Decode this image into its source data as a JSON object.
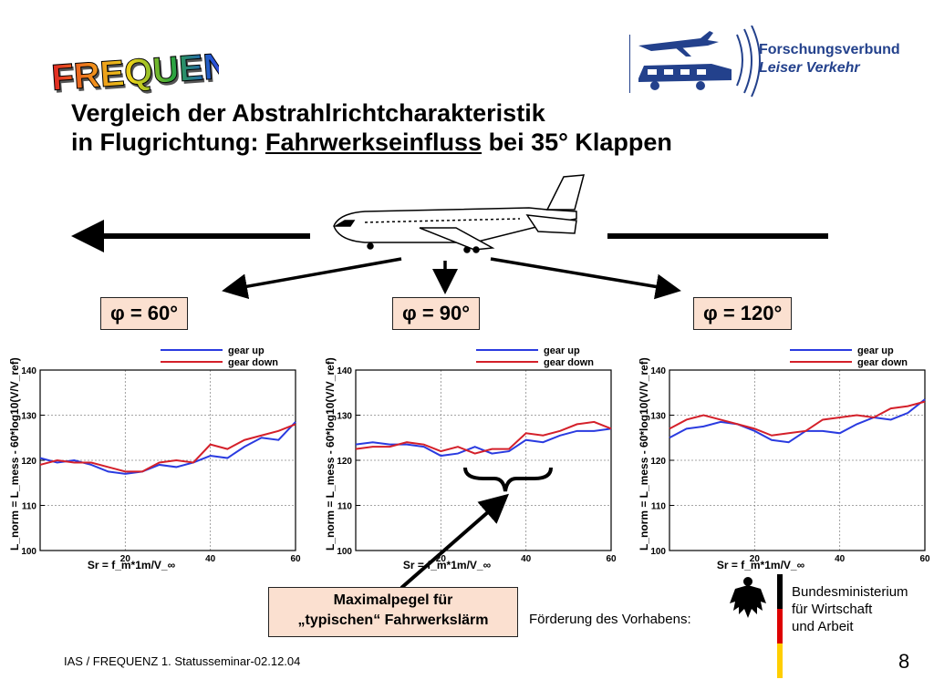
{
  "logo_text": "FREQUENZ",
  "partner": {
    "line1": "Forschungsverbund",
    "line2": "Leiser Verkehr"
  },
  "title": {
    "line1": "Vergleich der Abstrahlrichtcharakteristik",
    "line2_prefix": "in Flugrichtung: ",
    "line2_underlined": "Fahrwerkseinfluss",
    "line2_suffix": " bei 35° Klappen"
  },
  "angles": [
    "φ = 60°",
    "φ = 90°",
    "φ = 120°"
  ],
  "chart_labels": {
    "ylabel": "L_norm = L_mess - 60*log10(V/V_ref)",
    "xlabel": "Sr = f_m*1m/V_∞"
  },
  "chart_data": [
    {
      "type": "line",
      "title": "",
      "ylim": [
        100,
        140
      ],
      "xlim": [
        0,
        60
      ],
      "yticks": [
        100,
        110,
        120,
        130,
        140
      ],
      "xticks": [
        20,
        40,
        60
      ],
      "legend_position": "top-right",
      "series": [
        {
          "name": "gear up",
          "color": "#2a3be0",
          "x": [
            0,
            4,
            8,
            12,
            16,
            20,
            24,
            28,
            32,
            36,
            40,
            44,
            48,
            52,
            56,
            60
          ],
          "y": [
            120.5,
            119.5,
            120,
            119,
            117.5,
            117,
            117.5,
            119,
            118.5,
            119.5,
            121,
            120.5,
            123,
            125,
            124.5,
            128.5
          ]
        },
        {
          "name": "gear down",
          "color": "#d4202a",
          "x": [
            0,
            4,
            8,
            12,
            16,
            20,
            24,
            28,
            32,
            36,
            40,
            44,
            48,
            52,
            56,
            60
          ],
          "y": [
            119,
            120,
            119.5,
            119.5,
            118.5,
            117.5,
            117.5,
            119.5,
            120,
            119.5,
            123.5,
            122.5,
            124.5,
            125.5,
            126.5,
            128
          ]
        }
      ]
    },
    {
      "type": "line",
      "title": "",
      "ylim": [
        100,
        140
      ],
      "xlim": [
        0,
        60
      ],
      "yticks": [
        100,
        110,
        120,
        130,
        140
      ],
      "xticks": [
        20,
        40,
        60
      ],
      "legend_position": "top-right",
      "series": [
        {
          "name": "gear up",
          "color": "#2a3be0",
          "x": [
            0,
            4,
            8,
            12,
            16,
            20,
            24,
            28,
            32,
            36,
            40,
            44,
            48,
            52,
            56,
            60
          ],
          "y": [
            123.5,
            124,
            123.5,
            123.5,
            123,
            121,
            121.5,
            123,
            121.5,
            122,
            124.5,
            124,
            125.5,
            126.5,
            126.5,
            127
          ]
        },
        {
          "name": "gear down",
          "color": "#d4202a",
          "x": [
            0,
            4,
            8,
            12,
            16,
            20,
            24,
            28,
            32,
            36,
            40,
            44,
            48,
            52,
            56,
            60
          ],
          "y": [
            122.5,
            123,
            123,
            124,
            123.5,
            122,
            123,
            121.5,
            122.5,
            122.5,
            126,
            125.5,
            126.5,
            128,
            128.5,
            127
          ]
        }
      ]
    },
    {
      "type": "line",
      "title": "",
      "ylim": [
        100,
        140
      ],
      "xlim": [
        0,
        60
      ],
      "yticks": [
        100,
        110,
        120,
        130,
        140
      ],
      "xticks": [
        20,
        40,
        60
      ],
      "legend_position": "top-right",
      "series": [
        {
          "name": "gear up",
          "color": "#2a3be0",
          "x": [
            0,
            4,
            8,
            12,
            16,
            20,
            24,
            28,
            32,
            36,
            40,
            44,
            48,
            52,
            56,
            60
          ],
          "y": [
            125,
            127,
            127.5,
            128.5,
            128,
            126.5,
            124.5,
            124,
            126.5,
            126.5,
            126,
            128,
            129.5,
            129,
            130.5,
            133.5
          ]
        },
        {
          "name": "gear down",
          "color": "#d4202a",
          "x": [
            0,
            4,
            8,
            12,
            16,
            20,
            24,
            28,
            32,
            36,
            40,
            44,
            48,
            52,
            56,
            60
          ],
          "y": [
            127,
            129,
            130,
            129,
            128,
            127,
            125.5,
            126,
            126.5,
            129,
            129.5,
            130,
            129.5,
            131.5,
            132,
            133
          ]
        }
      ]
    }
  ],
  "callout": {
    "line1": "Maximalpegel für",
    "line2": "„typischen“ Fahrwerkslärm"
  },
  "foerderung": "Förderung des Vorhabens:",
  "ministry": {
    "line1": "Bundesministerium",
    "line2": "für Wirtschaft",
    "line3": "und Arbeit"
  },
  "footer": "IAS / FREQUENZ  1. Statusseminar-02.12.04",
  "page_number": "8"
}
